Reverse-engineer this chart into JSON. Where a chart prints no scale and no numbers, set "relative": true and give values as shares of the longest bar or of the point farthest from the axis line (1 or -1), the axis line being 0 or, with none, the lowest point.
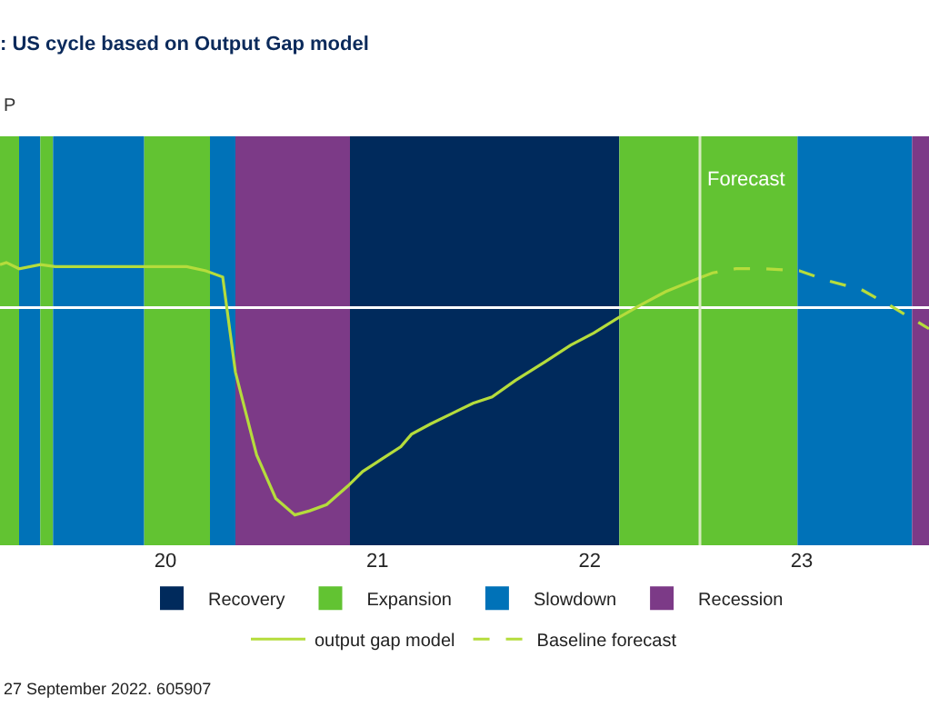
{
  "chart_data": {
    "type": "line",
    "title": ": US cycle based on Output Gap model",
    "subtitle": "P",
    "relative": true,
    "xlim": [
      2019.22,
      2023.6
    ],
    "xticks": [
      {
        "value": 2020,
        "label": "20"
      },
      {
        "value": 2021,
        "label": "21"
      },
      {
        "value": 2022,
        "label": "22"
      },
      {
        "value": 2023,
        "label": "23"
      }
    ],
    "grid": false,
    "legend": "bottom",
    "series": [
      {
        "name": "output gap model",
        "color": "#b5dc3c",
        "line_style": "solid",
        "x": [
          2019.22,
          2019.25,
          2019.31,
          2019.41,
          2019.48,
          2019.73,
          2019.91,
          2020.1,
          2020.19,
          2020.27,
          2020.33,
          2020.43,
          2020.52,
          2020.61,
          2020.68,
          2020.76,
          2020.86,
          2020.93,
          2021.02,
          2021.11,
          2021.16,
          2021.25,
          2021.35,
          2021.45,
          2021.54,
          2021.65,
          2021.79,
          2021.91,
          2022.02,
          2022.13,
          2022.25,
          2022.36,
          2022.48,
          2022.53
        ],
        "values": [
          0.21,
          0.22,
          0.19,
          0.21,
          0.2,
          0.2,
          0.2,
          0.2,
          0.18,
          0.15,
          -0.31,
          -0.71,
          -0.92,
          -1.0,
          -0.98,
          -0.95,
          -0.86,
          -0.79,
          -0.73,
          -0.67,
          -0.61,
          -0.56,
          -0.51,
          -0.46,
          -0.43,
          -0.35,
          -0.26,
          -0.18,
          -0.12,
          -0.05,
          0.02,
          0.08,
          0.13,
          0.15
        ]
      },
      {
        "name": "Baseline forecast",
        "color": "#b5dc3c",
        "line_style": "dashed",
        "x": [
          2022.53,
          2022.58,
          2022.69,
          2022.82,
          2022.99,
          2023.13,
          2023.28,
          2023.42,
          2023.6
        ],
        "values": [
          0.15,
          0.17,
          0.19,
          0.19,
          0.18,
          0.13,
          0.09,
          0.01,
          -0.1
        ]
      }
    ],
    "bands": [
      {
        "axis": "x",
        "from": 2019.22,
        "to": 2019.31,
        "color": "#62c332"
      },
      {
        "axis": "x",
        "from": 2019.31,
        "to": 2019.41,
        "color": "#0072b8"
      },
      {
        "axis": "x",
        "from": 2019.41,
        "to": 2019.47,
        "color": "#62c332"
      },
      {
        "axis": "x",
        "from": 2019.47,
        "to": 2019.9,
        "color": "#0072b8"
      },
      {
        "axis": "x",
        "from": 2019.9,
        "to": 2020.21,
        "color": "#62c332"
      },
      {
        "axis": "x",
        "from": 2020.21,
        "to": 2020.33,
        "color": "#0072b8"
      },
      {
        "axis": "x",
        "from": 2020.33,
        "to": 2020.87,
        "color": "#7c3a87"
      },
      {
        "axis": "x",
        "from": 2020.87,
        "to": 2022.14,
        "label": "Recovery",
        "color": "#002a5c"
      },
      {
        "axis": "x",
        "from": 2022.14,
        "to": 2022.98,
        "label": "Expansion",
        "color": "#62c332"
      },
      {
        "axis": "x",
        "from": 2022.98,
        "to": 2023.52,
        "label": "Slowdown",
        "color": "#0072b8"
      },
      {
        "axis": "x",
        "from": 2023.52,
        "to": 2023.6,
        "label": "Recession",
        "color": "#7c3a87"
      }
    ],
    "ref_lines": [
      {
        "axis": "x",
        "value": 2022.52,
        "label": "Forecast",
        "color": "#d8ecc0"
      }
    ],
    "annotations": [
      "27 September 2022. 605907"
    ]
  }
}
